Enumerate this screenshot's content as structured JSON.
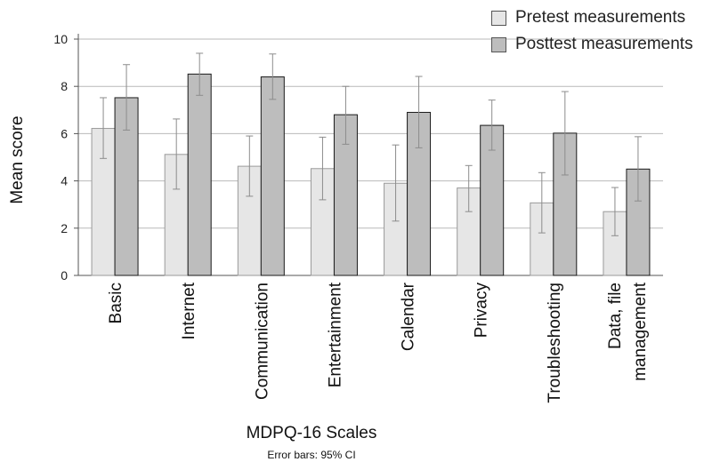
{
  "chart_data": {
    "type": "bar",
    "title": "",
    "xlabel": "MDPQ-16 Scales",
    "ylabel": "Mean score",
    "note": "Error bars: 95% CI",
    "ylim": [
      0,
      10
    ],
    "yticks": [
      0,
      2,
      4,
      6,
      8,
      10
    ],
    "grid": true,
    "legend_position": "top-right",
    "categories": [
      "Basic",
      "Internet",
      "Communication",
      "Entertainment",
      "Calendar",
      "Privacy",
      "Troubleshooting",
      "Data, file\nmanagement"
    ],
    "series": [
      {
        "name": "Pretest measurements",
        "color": "#e6e6e6",
        "values": [
          6.22,
          5.12,
          4.62,
          4.52,
          3.9,
          3.7,
          3.07,
          2.7
        ],
        "ci_low": [
          4.95,
          3.65,
          3.35,
          3.2,
          2.3,
          2.7,
          1.8,
          1.68
        ],
        "ci_high": [
          7.52,
          6.62,
          5.9,
          5.85,
          5.52,
          4.65,
          4.35,
          3.72
        ]
      },
      {
        "name": "Posttest measurements",
        "color": "#bdbdbd",
        "values": [
          7.52,
          8.52,
          8.4,
          6.8,
          6.9,
          6.35,
          6.02,
          4.5
        ],
        "ci_low": [
          6.15,
          7.62,
          7.45,
          5.55,
          5.4,
          5.3,
          4.25,
          3.15
        ],
        "ci_high": [
          8.92,
          9.4,
          9.37,
          8.0,
          8.42,
          7.42,
          7.78,
          5.87
        ]
      }
    ]
  }
}
